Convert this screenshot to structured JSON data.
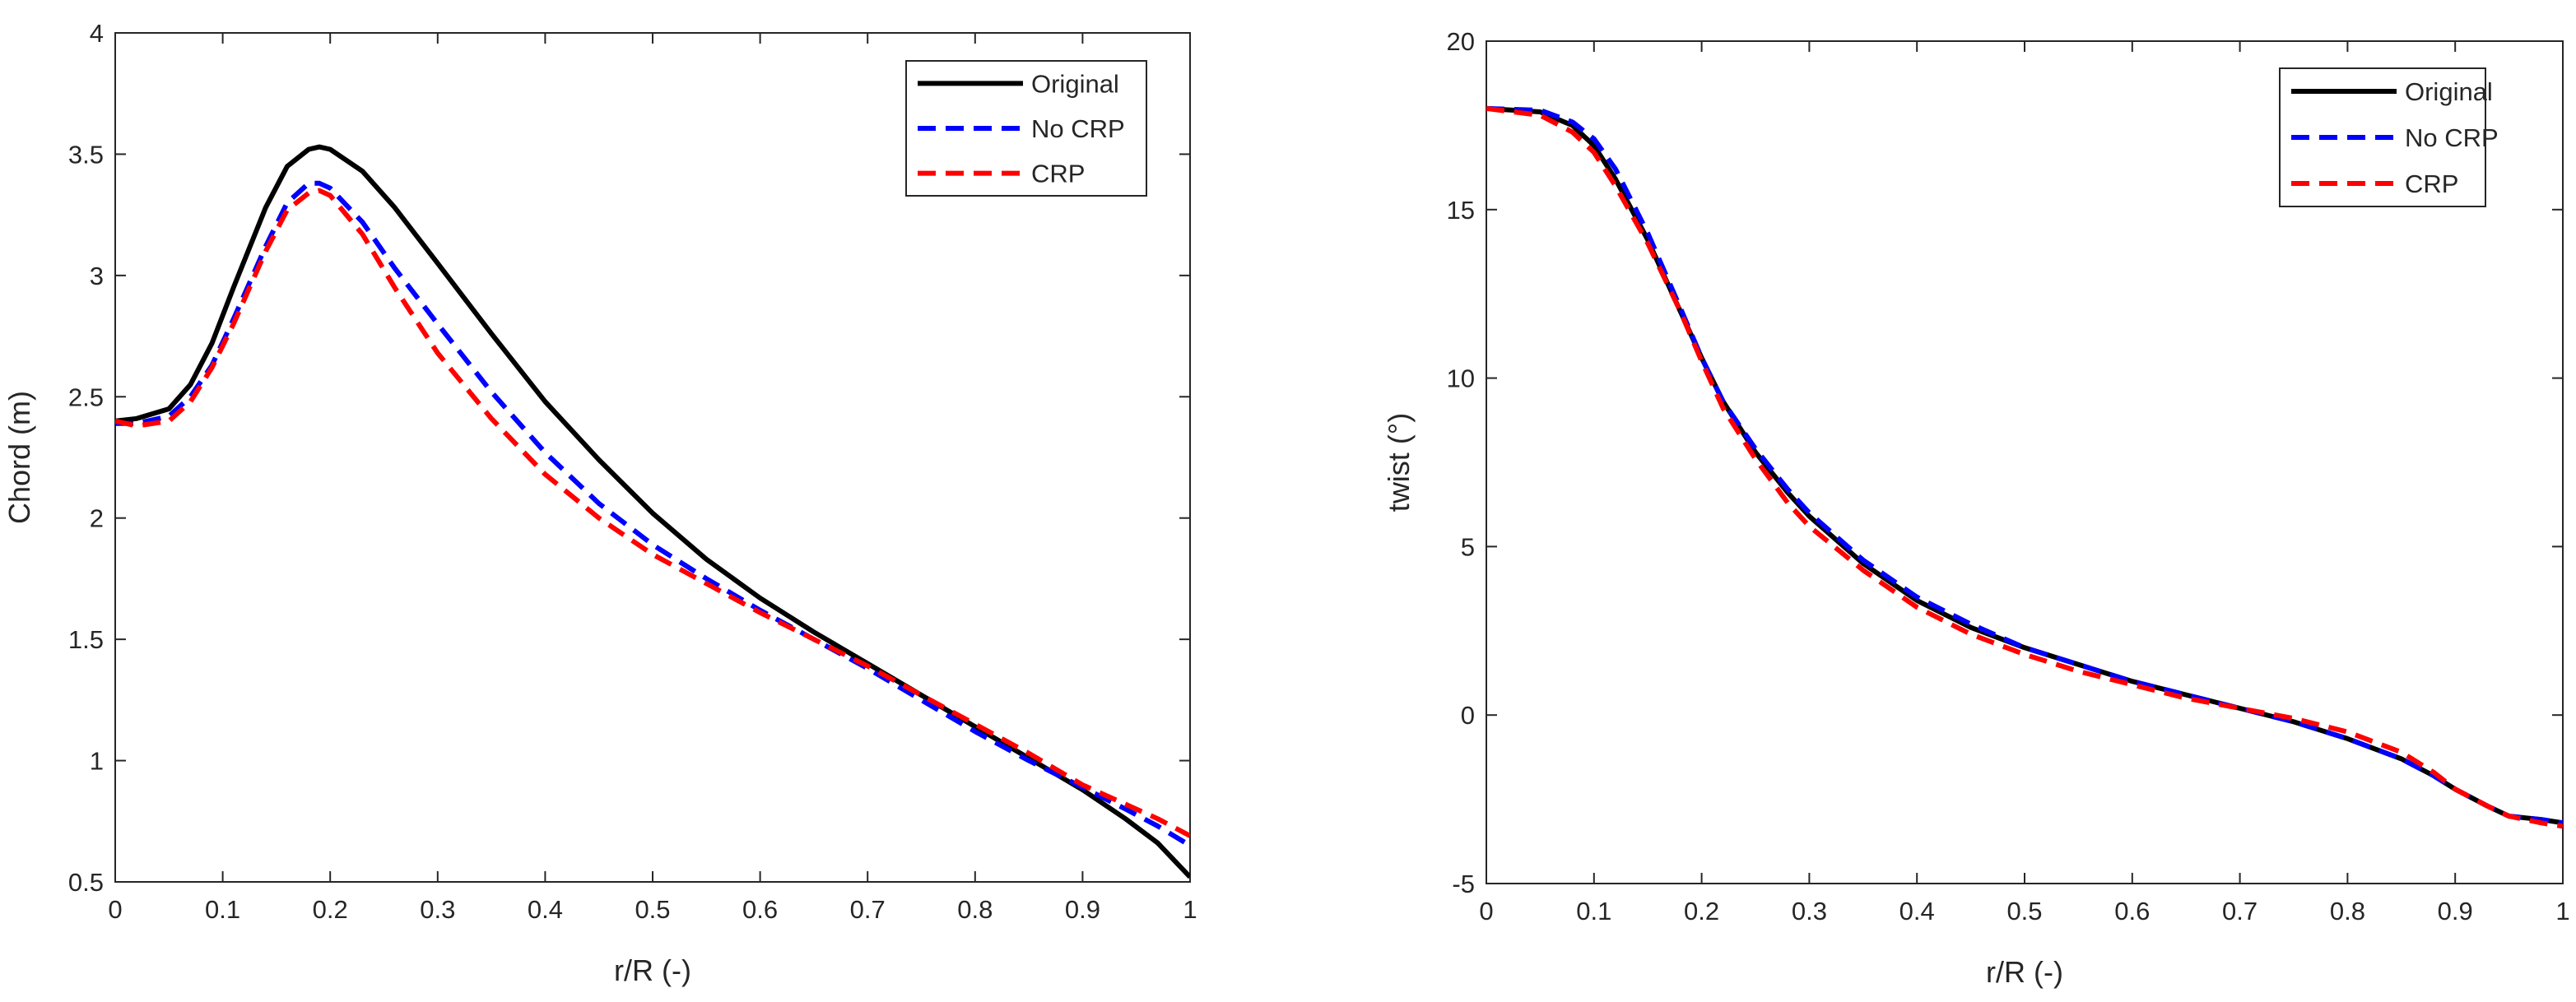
{
  "chart_data": [
    {
      "type": "line",
      "title": "",
      "xlabel": "r/R (-)",
      "ylabel": "Chord (m)",
      "xlim": [
        0,
        1
      ],
      "ylim": [
        0.5,
        4
      ],
      "xticks": [
        0,
        0.1,
        0.2,
        0.3,
        0.4,
        0.5,
        0.6,
        0.7,
        0.8,
        0.9,
        1
      ],
      "xtick_labels": [
        "0",
        "0.1",
        "0.2",
        "0.3",
        "0.4",
        "0.5",
        "0.6",
        "0.7",
        "0.8",
        "0.9",
        "1"
      ],
      "yticks": [
        0.5,
        1,
        1.5,
        2,
        2.5,
        3,
        3.5,
        4
      ],
      "ytick_labels": [
        "0.5",
        "1",
        "1.5",
        "2",
        "2.5",
        "3",
        "3.5",
        "4"
      ],
      "legend_position": "top-right",
      "series": [
        {
          "name": "Original",
          "color": "#000000",
          "style": "solid",
          "x": [
            0,
            0.02,
            0.05,
            0.07,
            0.09,
            0.11,
            0.14,
            0.16,
            0.18,
            0.19,
            0.2,
            0.23,
            0.26,
            0.3,
            0.35,
            0.4,
            0.45,
            0.5,
            0.55,
            0.6,
            0.65,
            0.7,
            0.75,
            0.8,
            0.85,
            0.9,
            0.94,
            0.97,
            1.0
          ],
          "y": [
            2.4,
            2.41,
            2.45,
            2.55,
            2.72,
            2.95,
            3.28,
            3.45,
            3.52,
            3.53,
            3.52,
            3.43,
            3.28,
            3.05,
            2.76,
            2.48,
            2.24,
            2.02,
            1.83,
            1.67,
            1.53,
            1.4,
            1.27,
            1.14,
            1.01,
            0.88,
            0.76,
            0.66,
            0.52
          ]
        },
        {
          "name": "No CRP",
          "color": "#0000ff",
          "style": "dashed",
          "x": [
            0,
            0.02,
            0.05,
            0.07,
            0.09,
            0.11,
            0.14,
            0.16,
            0.18,
            0.19,
            0.2,
            0.23,
            0.26,
            0.3,
            0.35,
            0.4,
            0.45,
            0.5,
            0.55,
            0.6,
            0.65,
            0.7,
            0.75,
            0.8,
            0.85,
            0.9,
            0.94,
            0.97,
            1.0
          ],
          "y": [
            2.39,
            2.39,
            2.42,
            2.5,
            2.63,
            2.82,
            3.12,
            3.3,
            3.38,
            3.38,
            3.36,
            3.22,
            3.03,
            2.8,
            2.52,
            2.27,
            2.06,
            1.89,
            1.75,
            1.62,
            1.5,
            1.38,
            1.25,
            1.12,
            1.0,
            0.89,
            0.8,
            0.73,
            0.65
          ]
        },
        {
          "name": "CRP",
          "color": "#ff0000",
          "style": "dashed",
          "x": [
            0,
            0.02,
            0.05,
            0.07,
            0.09,
            0.11,
            0.14,
            0.16,
            0.18,
            0.19,
            0.2,
            0.23,
            0.26,
            0.3,
            0.35,
            0.4,
            0.45,
            0.5,
            0.55,
            0.6,
            0.65,
            0.7,
            0.75,
            0.8,
            0.85,
            0.9,
            0.94,
            0.97,
            1.0
          ],
          "y": [
            2.4,
            2.38,
            2.4,
            2.48,
            2.62,
            2.8,
            3.1,
            3.27,
            3.34,
            3.35,
            3.33,
            3.17,
            2.95,
            2.68,
            2.41,
            2.18,
            2.0,
            1.85,
            1.73,
            1.61,
            1.5,
            1.39,
            1.27,
            1.15,
            1.03,
            0.9,
            0.82,
            0.76,
            0.69
          ]
        }
      ]
    },
    {
      "type": "line",
      "title": "",
      "xlabel": "r/R (-)",
      "ylabel": "twist (°)",
      "xlim": [
        0,
        1
      ],
      "ylim": [
        -5,
        20
      ],
      "xticks": [
        0,
        0.1,
        0.2,
        0.3,
        0.4,
        0.5,
        0.6,
        0.7,
        0.8,
        0.9,
        1
      ],
      "xtick_labels": [
        "0",
        "0.1",
        "0.2",
        "0.3",
        "0.4",
        "0.5",
        "0.6",
        "0.7",
        "0.8",
        "0.9",
        "1"
      ],
      "yticks": [
        -5,
        0,
        5,
        10,
        15,
        20
      ],
      "ytick_labels": [
        "-5",
        "0",
        "5",
        "10",
        "15",
        "20"
      ],
      "legend_position": "top-right",
      "series": [
        {
          "name": "Original",
          "color": "#000000",
          "style": "solid",
          "x": [
            0,
            0.05,
            0.08,
            0.1,
            0.12,
            0.15,
            0.18,
            0.2,
            0.22,
            0.25,
            0.28,
            0.3,
            0.35,
            0.4,
            0.45,
            0.5,
            0.55,
            0.6,
            0.65,
            0.7,
            0.75,
            0.8,
            0.85,
            0.88,
            0.9,
            0.93,
            0.95,
            0.98,
            1.0
          ],
          "y": [
            18.0,
            17.9,
            17.5,
            16.9,
            15.9,
            14.1,
            12.0,
            10.6,
            9.3,
            7.8,
            6.6,
            5.9,
            4.5,
            3.4,
            2.6,
            2.0,
            1.5,
            1.0,
            0.6,
            0.2,
            -0.2,
            -0.7,
            -1.3,
            -1.8,
            -2.2,
            -2.7,
            -3.0,
            -3.1,
            -3.2
          ]
        },
        {
          "name": "No CRP",
          "color": "#0000ff",
          "style": "dashed",
          "x": [
            0,
            0.05,
            0.08,
            0.1,
            0.12,
            0.15,
            0.18,
            0.2,
            0.22,
            0.25,
            0.28,
            0.3,
            0.35,
            0.4,
            0.45,
            0.5,
            0.55,
            0.6,
            0.65,
            0.7,
            0.75,
            0.8,
            0.85,
            0.88,
            0.9,
            0.93,
            0.95,
            0.98,
            1.0
          ],
          "y": [
            18.0,
            17.95,
            17.6,
            17.1,
            16.2,
            14.3,
            12.1,
            10.6,
            9.3,
            7.9,
            6.7,
            6.0,
            4.6,
            3.5,
            2.7,
            2.0,
            1.5,
            1.0,
            0.6,
            0.2,
            -0.2,
            -0.7,
            -1.3,
            -1.8,
            -2.2,
            -2.7,
            -3.0,
            -3.1,
            -3.2
          ]
        },
        {
          "name": "CRP",
          "color": "#ff0000",
          "style": "dashed",
          "x": [
            0,
            0.05,
            0.08,
            0.1,
            0.12,
            0.15,
            0.18,
            0.2,
            0.22,
            0.25,
            0.28,
            0.3,
            0.35,
            0.4,
            0.45,
            0.5,
            0.55,
            0.6,
            0.65,
            0.7,
            0.75,
            0.8,
            0.85,
            0.88,
            0.9,
            0.93,
            0.95,
            0.98,
            1.0
          ],
          "y": [
            18.0,
            17.8,
            17.3,
            16.7,
            15.7,
            14.0,
            12.0,
            10.5,
            9.1,
            7.6,
            6.3,
            5.6,
            4.3,
            3.2,
            2.4,
            1.8,
            1.3,
            0.9,
            0.5,
            0.2,
            -0.1,
            -0.5,
            -1.1,
            -1.7,
            -2.2,
            -2.7,
            -3.0,
            -3.2,
            -3.3
          ]
        }
      ]
    }
  ]
}
